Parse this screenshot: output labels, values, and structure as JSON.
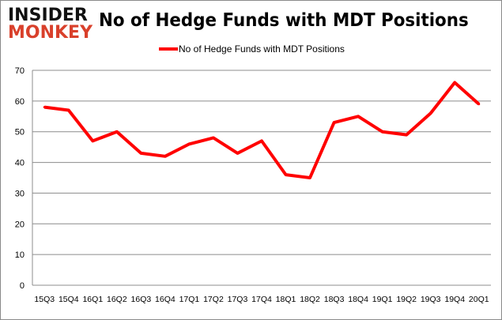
{
  "logo": {
    "line1": "INSIDER",
    "line2": "MONKEY"
  },
  "chart_data": {
    "type": "line",
    "title": "No of Hedge Funds with MDT Positions",
    "categories": [
      "15Q3",
      "15Q4",
      "16Q1",
      "16Q2",
      "16Q3",
      "16Q4",
      "17Q1",
      "17Q2",
      "17Q3",
      "17Q4",
      "18Q1",
      "18Q2",
      "18Q3",
      "18Q4",
      "19Q1",
      "19Q2",
      "19Q3",
      "19Q4",
      "20Q1"
    ],
    "series": [
      {
        "name": "No of Hedge Funds with MDT Positions",
        "color": "#ff0000",
        "values": [
          58,
          57,
          47,
          50,
          43,
          42,
          46,
          48,
          43,
          47,
          36,
          35,
          53,
          55,
          50,
          49,
          56,
          66,
          59
        ]
      }
    ],
    "ylim": [
      0,
      70
    ],
    "yticks": [
      0,
      10,
      20,
      30,
      40,
      50,
      60,
      70
    ],
    "grid": true,
    "legend": "top-center",
    "xlabel": "",
    "ylabel": ""
  }
}
